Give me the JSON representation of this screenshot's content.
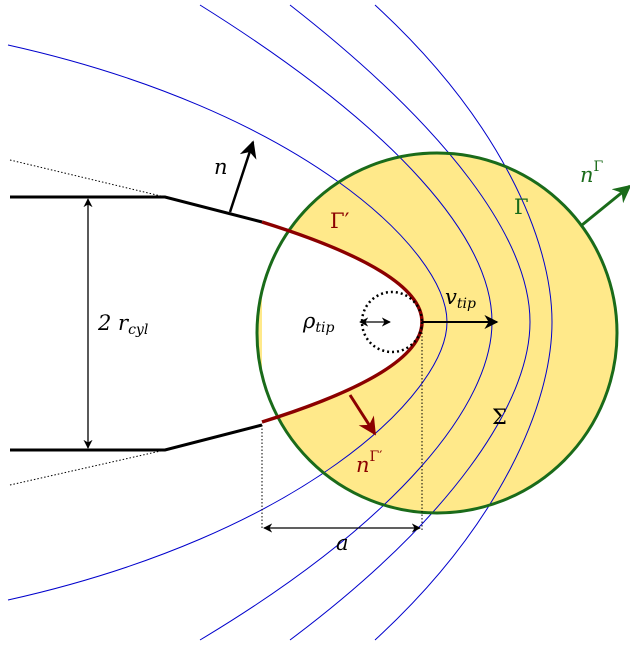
{
  "labels": {
    "normal": {
      "base": "n"
    },
    "gamma_prime": {
      "base": "Γ′"
    },
    "gamma": {
      "base": "Γ"
    },
    "normal_gamma": {
      "base": "n",
      "sup": "Γ"
    },
    "radius": {
      "base": "2 r",
      "sub": "cyl"
    },
    "rho": {
      "base": "ρ",
      "sub": "tip"
    },
    "velocity": {
      "base": "v",
      "sub": "tip"
    },
    "sigma": {
      "base": "Σ"
    },
    "normal_gamma_prime": {
      "base": "n",
      "sup": "Γ′"
    },
    "distance": {
      "base": "a"
    }
  }
}
